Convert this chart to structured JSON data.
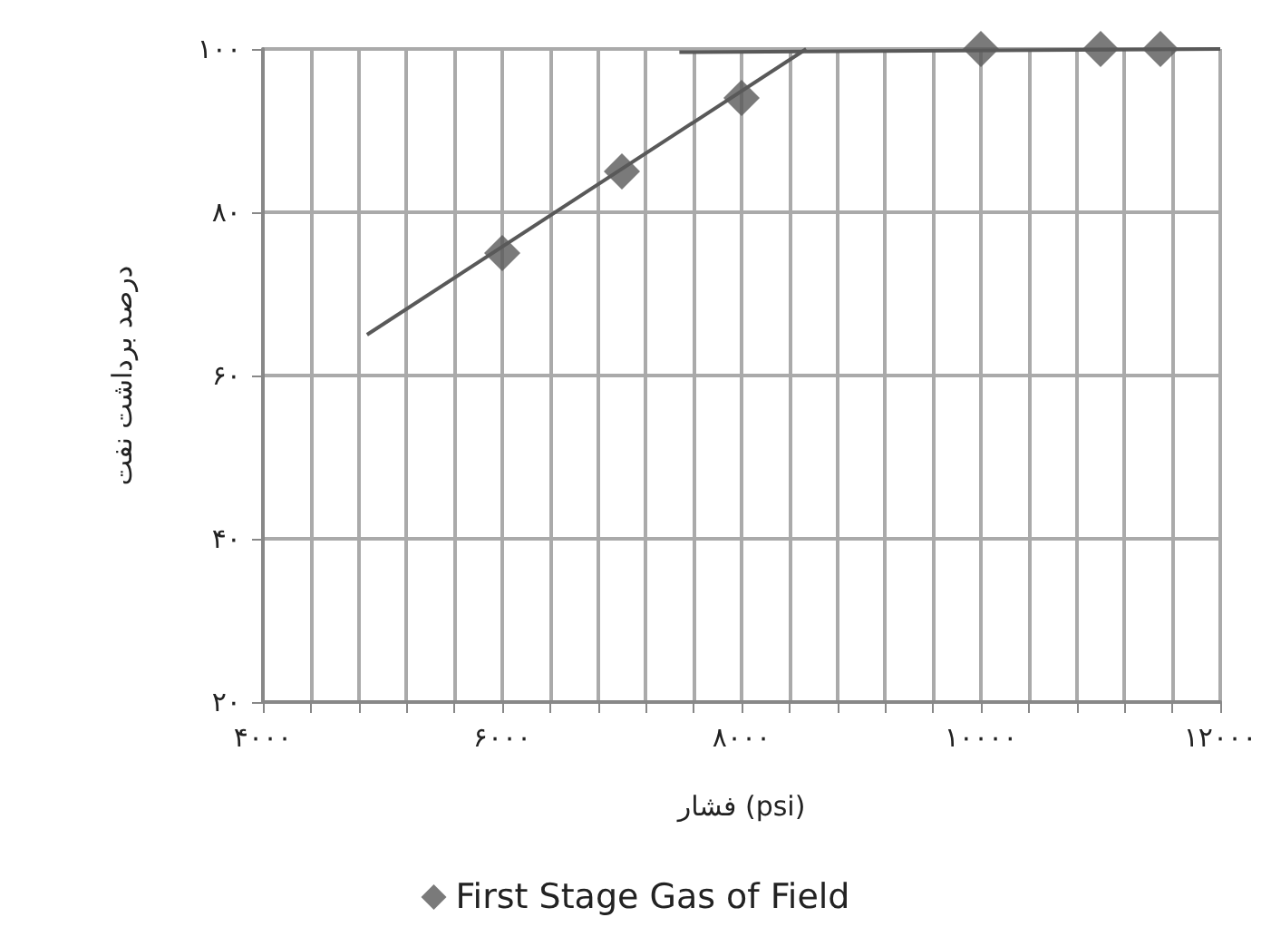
{
  "chart_data": {
    "type": "scatter",
    "xlabel": "فشار (psi)",
    "ylabel": "درصد برداشت نفت",
    "marker": "diamond",
    "grid": true,
    "legend": "bottom",
    "xlim": [
      4000,
      12000
    ],
    "xticks": [
      {
        "value": 4000,
        "label": "۴۰۰۰"
      },
      {
        "value": 4400,
        "label": null
      },
      {
        "value": 4800,
        "label": null
      },
      {
        "value": 5200,
        "label": null
      },
      {
        "value": 5600,
        "label": null
      },
      {
        "value": 6000,
        "label": "۶۰۰۰"
      },
      {
        "value": 6400,
        "label": null
      },
      {
        "value": 6800,
        "label": null
      },
      {
        "value": 7200,
        "label": null
      },
      {
        "value": 7600,
        "label": null
      },
      {
        "value": 8000,
        "label": "۸۰۰۰"
      },
      {
        "value": 8400,
        "label": null
      },
      {
        "value": 8800,
        "label": null
      },
      {
        "value": 9200,
        "label": null
      },
      {
        "value": 9600,
        "label": null
      },
      {
        "value": 10000,
        "label": "۱۰۰۰۰"
      },
      {
        "value": 10400,
        "label": null
      },
      {
        "value": 10800,
        "label": null
      },
      {
        "value": 11200,
        "label": null
      },
      {
        "value": 11600,
        "label": null
      },
      {
        "value": 12000,
        "label": "۱۲۰۰۰"
      }
    ],
    "ylim": [
      20,
      100
    ],
    "yticks": [
      {
        "value": 20,
        "label": "۲۰"
      },
      {
        "value": 40,
        "label": "۴۰"
      },
      {
        "value": 60,
        "label": "۶۰"
      },
      {
        "value": 80,
        "label": "۸۰"
      },
      {
        "value": 100,
        "label": "۱۰۰"
      }
    ],
    "series": [
      {
        "name": "First Stage Gas of Field",
        "color": "#595959",
        "x": [
          6000,
          7000,
          8000,
          10000,
          11000,
          11500
        ],
        "values": [
          75,
          85,
          94,
          100,
          100,
          100
        ]
      },
      {
        "type": "line",
        "marker": "none",
        "color": "#595959",
        "x": [
          4870,
          8540
        ],
        "values": [
          65,
          100
        ]
      },
      {
        "type": "line",
        "marker": "none",
        "color": "#595959",
        "x": [
          7480,
          12000
        ],
        "values": [
          99.6,
          100
        ]
      }
    ]
  }
}
